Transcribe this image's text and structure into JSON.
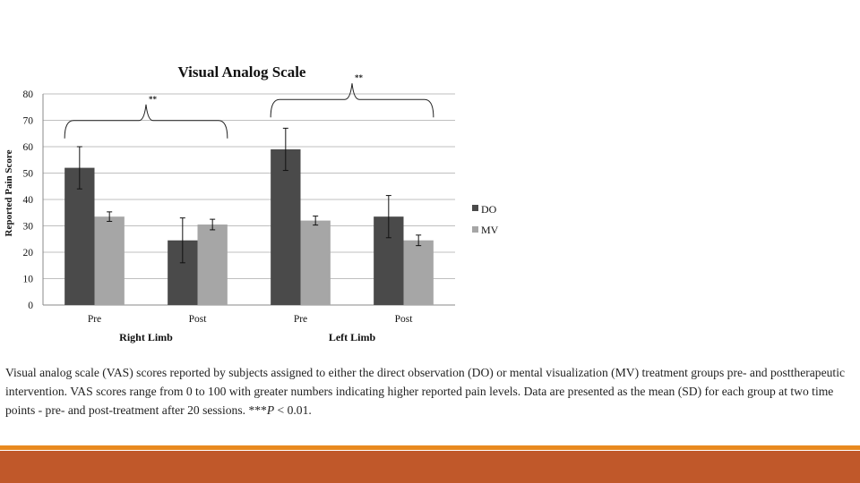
{
  "slide": {
    "caption_main": "Visual analog scale (VAS) scores reported by subjects assigned to either the direct observation (DO) or mental visualization (MV) treatment groups pre- and posttherapeutic intervention. VAS scores range from 0 to 100 with greater numbers indicating higher reported pain levels. Data are presented as the mean (SD) for each group at two time points - pre- and post-treatment after 20 sessions. ",
    "caption_sig": "***",
    "caption_p": "P",
    "caption_tail": " < 0.01.",
    "colors": {
      "accent_thin": "#E8891F",
      "accent_thick": "#C0582A"
    }
  },
  "chart_data": {
    "type": "bar",
    "title": "Visual Analog Scale",
    "ylabel": "Reported Pain Score",
    "ylim": [
      0,
      80
    ],
    "yticks": [
      0,
      10,
      20,
      30,
      40,
      50,
      60,
      70,
      80
    ],
    "grid": true,
    "legend_position": "right",
    "groups": [
      {
        "label": "Right Limb",
        "categories": [
          "Pre",
          "Post"
        ]
      },
      {
        "label": "Left Limb",
        "categories": [
          "Pre",
          "Post"
        ]
      }
    ],
    "series": [
      {
        "name": "DO",
        "color": "#4a4a4a",
        "values": [
          52,
          24.5,
          59,
          33.5
        ],
        "sd": [
          8,
          8.5,
          8,
          8
        ]
      },
      {
        "name": "MV",
        "color": "#a6a6a6",
        "values": [
          33.5,
          30.5,
          32,
          24.5
        ],
        "sd": [
          1.8,
          2,
          1.7,
          2
        ]
      }
    ],
    "annotations": [
      {
        "text": "**",
        "group": "Right Limb",
        "pointer_value": 76
      },
      {
        "text": "**",
        "group": "Left Limb",
        "pointer_value": 84
      }
    ]
  }
}
